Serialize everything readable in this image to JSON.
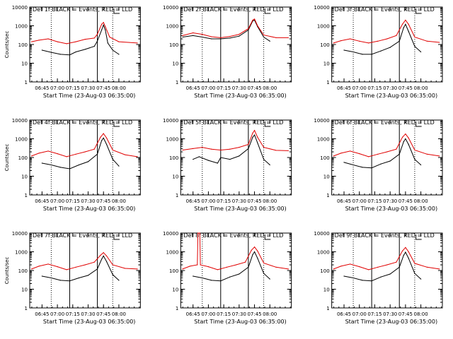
{
  "figure": {
    "background": "#ffffff",
    "axis_color": "#000000",
    "events_color": "#000000",
    "lld_color": "#e00000"
  },
  "chart_data": [
    {
      "type": "line",
      "detector": "Det 1f",
      "title": "Det 1f BLACK = Events, RED = LLD",
      "xlabel": "Start Time (23-Aug-03 06:35:00)",
      "ylabel": "Counts/sec",
      "xticks": [
        "06:45",
        "07:00",
        "07:15",
        "07:30",
        "07:45",
        "08:00"
      ],
      "yticks": [
        "1",
        "10",
        "100",
        "1000",
        "10000"
      ],
      "ylim": [
        1,
        10000
      ],
      "y_scale": "log",
      "series": [
        {
          "name": "Events",
          "color": "black",
          "x": [
            6.75,
            6.9,
            7.05,
            7.2,
            7.3,
            7.45,
            7.6,
            7.65,
            7.72,
            7.75,
            7.78,
            7.82,
            7.9,
            8.0
          ],
          "y": [
            50,
            38,
            30,
            28,
            40,
            55,
            80,
            150,
            600,
            1100,
            600,
            120,
            50,
            30
          ]
        },
        {
          "name": "LLD",
          "color": "red",
          "x": [
            6.58,
            6.7,
            6.85,
            7.0,
            7.15,
            7.3,
            7.45,
            7.6,
            7.65,
            7.72,
            7.75,
            7.78,
            7.85,
            8.0,
            8.3
          ],
          "y": [
            140,
            170,
            200,
            140,
            110,
            140,
            190,
            220,
            350,
            1200,
            1500,
            900,
            250,
            140,
            120
          ]
        }
      ],
      "vlines_solid": [
        7.2,
        7.65
      ],
      "vlines_dotted": [
        6.9,
        7.9
      ]
    },
    {
      "type": "line",
      "detector": "Det 2f",
      "title": "Det 2f BLACK = Events, RED = LLD",
      "xlabel": "Start Time (23-Aug-03 06:35:00)",
      "ylabel": "",
      "xticks": [
        "06:45",
        "07:00",
        "07:15",
        "07:30",
        "07:45",
        "08:00"
      ],
      "yticks": [
        "1",
        "10",
        "100",
        "1000",
        "10000"
      ],
      "ylim": [
        1,
        10000
      ],
      "y_scale": "log",
      "series": [
        {
          "name": "Events",
          "color": "black",
          "x": [
            6.58,
            6.75,
            6.9,
            7.05,
            7.2,
            7.35,
            7.5,
            7.65,
            7.72,
            7.75,
            7.8,
            7.9,
            8.0
          ],
          "y": [
            250,
            300,
            250,
            200,
            200,
            220,
            280,
            600,
            1800,
            2000,
            900,
            250,
            150
          ]
        },
        {
          "name": "LLD",
          "color": "red",
          "x": [
            6.58,
            6.75,
            6.9,
            7.05,
            7.2,
            7.35,
            7.5,
            7.65,
            7.72,
            7.75,
            7.8,
            7.9,
            8.1,
            8.3
          ],
          "y": [
            300,
            420,
            350,
            260,
            230,
            270,
            350,
            700,
            2000,
            2300,
            1000,
            320,
            230,
            230
          ]
        }
      ],
      "vlines_solid": [
        7.2,
        7.65
      ],
      "vlines_dotted": [
        6.9,
        7.9
      ]
    },
    {
      "type": "line",
      "detector": "Det 3f",
      "title": "Det 3f BLACK = Events, RED = LLD",
      "xlabel": "Start Time (23-Aug-03 06:35:00)",
      "ylabel": "",
      "xticks": [
        "06:45",
        "07:00",
        "07:15",
        "07:30",
        "07:45",
        "08:00"
      ],
      "yticks": [
        "1",
        "10",
        "100",
        "1000",
        "10000"
      ],
      "ylim": [
        1,
        10000
      ],
      "y_scale": "log",
      "series": [
        {
          "name": "Events",
          "color": "black",
          "x": [
            6.75,
            6.9,
            7.05,
            7.2,
            7.35,
            7.5,
            7.65,
            7.72,
            7.75,
            7.8,
            7.9,
            8.0
          ],
          "y": [
            50,
            40,
            30,
            30,
            45,
            70,
            150,
            800,
            1200,
            500,
            80,
            40
          ]
        },
        {
          "name": "LLD",
          "color": "red",
          "x": [
            6.58,
            6.7,
            6.85,
            7.0,
            7.15,
            7.3,
            7.45,
            7.6,
            7.7,
            7.75,
            7.8,
            7.9,
            8.1,
            8.3
          ],
          "y": [
            120,
            160,
            200,
            150,
            120,
            150,
            200,
            300,
            1200,
            2000,
            1200,
            250,
            150,
            130
          ]
        }
      ],
      "vlines_solid": [
        7.2,
        7.65
      ],
      "vlines_dotted": [
        6.9,
        7.9
      ]
    },
    {
      "type": "line",
      "detector": "Det 4f",
      "title": "Det 4f BLACK = Events, RED = LLD",
      "xlabel": "Start Time (23-Aug-03 06:35:00)",
      "ylabel": "Counts/sec",
      "xticks": [
        "06:45",
        "07:00",
        "07:15",
        "07:30",
        "07:45",
        "08:00"
      ],
      "yticks": [
        "1",
        "10",
        "100",
        "1000",
        "10000"
      ],
      "ylim": [
        1,
        10000
      ],
      "y_scale": "log",
      "series": [
        {
          "name": "Events",
          "color": "black",
          "x": [
            6.75,
            6.9,
            7.05,
            7.2,
            7.35,
            7.5,
            7.65,
            7.72,
            7.75,
            7.8,
            7.9,
            8.0
          ],
          "y": [
            50,
            40,
            30,
            25,
            40,
            60,
            150,
            800,
            1100,
            500,
            80,
            35
          ]
        },
        {
          "name": "LLD",
          "color": "red",
          "x": [
            6.58,
            6.7,
            6.85,
            7.0,
            7.15,
            7.3,
            7.45,
            7.6,
            7.7,
            7.75,
            7.8,
            7.9,
            8.1,
            8.3
          ],
          "y": [
            120,
            170,
            220,
            160,
            110,
            150,
            200,
            280,
            1200,
            1900,
            1100,
            250,
            140,
            110
          ]
        }
      ],
      "vlines_solid": [
        7.2,
        7.65
      ],
      "vlines_dotted": [
        6.9,
        7.9
      ]
    },
    {
      "type": "line",
      "detector": "Det 5f",
      "title": "Det 5f BLACK = Events, RED = LLD",
      "xlabel": "Start Time (23-Aug-03 06:35:00)",
      "ylabel": "",
      "xticks": [
        "06:45",
        "07:00",
        "07:15",
        "07:30",
        "07:45",
        "08:00"
      ],
      "yticks": [
        "1",
        "10",
        "100",
        "1000",
        "10000"
      ],
      "ylim": [
        1,
        10000
      ],
      "y_scale": "log",
      "series": [
        {
          "name": "Events",
          "color": "black",
          "x": [
            6.75,
            6.85,
            7.0,
            7.15,
            7.2,
            7.35,
            7.5,
            7.65,
            7.72,
            7.75,
            7.8,
            7.9,
            8.0
          ],
          "y": [
            80,
            110,
            70,
            50,
            100,
            80,
            120,
            300,
            1200,
            1600,
            600,
            80,
            40
          ]
        },
        {
          "name": "LLD",
          "color": "red",
          "x": [
            6.58,
            6.75,
            6.9,
            7.05,
            7.2,
            7.35,
            7.5,
            7.65,
            7.72,
            7.75,
            7.8,
            7.9,
            8.1,
            8.3
          ],
          "y": [
            250,
            300,
            350,
            280,
            250,
            280,
            350,
            500,
            2000,
            2800,
            1200,
            350,
            240,
            230
          ]
        }
      ],
      "vlines_solid": [
        7.2,
        7.65
      ],
      "vlines_dotted": [
        6.9,
        7.9
      ]
    },
    {
      "type": "line",
      "detector": "Det 6f",
      "title": "Det 6f BLACK = Events, RED = LLD",
      "xlabel": "Start Time (23-Aug-03 06:35:00)",
      "ylabel": "",
      "xticks": [
        "06:45",
        "07:00",
        "07:15",
        "07:30",
        "07:45",
        "08:00"
      ],
      "yticks": [
        "1",
        "10",
        "100",
        "1000",
        "10000"
      ],
      "ylim": [
        1,
        10000
      ],
      "y_scale": "log",
      "series": [
        {
          "name": "Events",
          "color": "black",
          "x": [
            6.75,
            6.9,
            7.05,
            7.2,
            7.35,
            7.5,
            7.65,
            7.72,
            7.75,
            7.8,
            7.9,
            8.0
          ],
          "y": [
            55,
            40,
            30,
            28,
            45,
            65,
            150,
            700,
            1000,
            500,
            80,
            40
          ]
        },
        {
          "name": "LLD",
          "color": "red",
          "x": [
            6.58,
            6.7,
            6.85,
            7.0,
            7.15,
            7.3,
            7.45,
            7.6,
            7.7,
            7.75,
            7.8,
            7.9,
            8.1,
            8.3
          ],
          "y": [
            120,
            170,
            220,
            160,
            110,
            150,
            200,
            280,
            1200,
            1800,
            1100,
            250,
            150,
            120
          ]
        }
      ],
      "vlines_solid": [
        7.2,
        7.65
      ],
      "vlines_dotted": [
        6.9,
        7.9
      ]
    },
    {
      "type": "line",
      "detector": "Det 7f",
      "title": "Det 7f BLACK = Events, RED = LLD",
      "xlabel": "Start Time (23-Aug-03 06:35:00)",
      "ylabel": "Counts/sec",
      "xticks": [
        "06:45",
        "07:00",
        "07:15",
        "07:30",
        "07:45",
        "08:00"
      ],
      "yticks": [
        "1",
        "10",
        "100",
        "1000",
        "10000"
      ],
      "ylim": [
        1,
        10000
      ],
      "y_scale": "log",
      "series": [
        {
          "name": "Events",
          "color": "black",
          "x": [
            6.75,
            6.9,
            7.05,
            7.2,
            7.35,
            7.5,
            7.65,
            7.72,
            7.75,
            7.8,
            7.9,
            8.0
          ],
          "y": [
            50,
            40,
            30,
            28,
            40,
            55,
            120,
            400,
            600,
            300,
            60,
            30
          ]
        },
        {
          "name": "LLD",
          "color": "red",
          "x": [
            6.58,
            6.7,
            6.85,
            7.0,
            7.15,
            7.3,
            7.45,
            7.6,
            7.7,
            7.75,
            7.8,
            7.9,
            8.1,
            8.3
          ],
          "y": [
            120,
            170,
            220,
            160,
            110,
            150,
            200,
            280,
            650,
            900,
            600,
            200,
            130,
            120
          ]
        }
      ],
      "vlines_solid": [
        7.2,
        7.65
      ],
      "vlines_dotted": [
        6.9,
        7.9
      ]
    },
    {
      "type": "line",
      "detector": "Det 8f",
      "title": "Det 8f BLACK = Events, RED = LLD",
      "xlabel": "Start Time (23-Aug-03 06:35:00)",
      "ylabel": "",
      "xticks": [
        "06:45",
        "07:00",
        "07:15",
        "07:30",
        "07:45",
        "08:00"
      ],
      "yticks": [
        "1",
        "10",
        "100",
        "1000",
        "10000"
      ],
      "ylim": [
        1,
        10000
      ],
      "y_scale": "log",
      "series": [
        {
          "name": "Events",
          "color": "black",
          "x": [
            6.75,
            6.9,
            7.05,
            7.2,
            7.35,
            7.5,
            7.65,
            7.72,
            7.75,
            7.8,
            7.9,
            8.0
          ],
          "y": [
            50,
            40,
            30,
            28,
            45,
            65,
            150,
            700,
            1000,
            450,
            70,
            35
          ]
        },
        {
          "name": "LLD",
          "color": "red",
          "x": [
            6.58,
            6.7,
            6.82,
            6.83,
            6.86,
            6.87,
            7.0,
            7.15,
            7.3,
            7.45,
            7.6,
            7.7,
            7.75,
            7.8,
            7.9,
            8.1,
            8.3
          ],
          "y": [
            120,
            170,
            200,
            10000,
            10000,
            200,
            160,
            110,
            150,
            200,
            280,
            1200,
            1800,
            1100,
            250,
            150,
            120
          ]
        }
      ],
      "vlines_solid": [
        7.2,
        7.65
      ],
      "vlines_dotted": [
        6.9,
        7.9
      ]
    },
    {
      "type": "line",
      "detector": "Det 9f",
      "title": "Det 9f BLACK = Events, RED = LLD",
      "xlabel": "Start Time (23-Aug-03 06:35:00)",
      "ylabel": "",
      "xticks": [
        "06:45",
        "07:00",
        "07:15",
        "07:30",
        "07:45",
        "08:00"
      ],
      "yticks": [
        "1",
        "10",
        "100",
        "1000",
        "10000"
      ],
      "ylim": [
        1,
        10000
      ],
      "y_scale": "log",
      "series": [
        {
          "name": "Events",
          "color": "black",
          "x": [
            6.75,
            6.9,
            7.05,
            7.2,
            7.35,
            7.5,
            7.65,
            7.72,
            7.75,
            7.8,
            7.9,
            8.0
          ],
          "y": [
            50,
            40,
            30,
            28,
            45,
            65,
            150,
            650,
            950,
            450,
            70,
            35
          ]
        },
        {
          "name": "LLD",
          "color": "red",
          "x": [
            6.58,
            6.7,
            6.85,
            7.0,
            7.15,
            7.3,
            7.45,
            7.6,
            7.7,
            7.75,
            7.8,
            7.9,
            8.1,
            8.3
          ],
          "y": [
            120,
            170,
            220,
            160,
            110,
            150,
            200,
            280,
            1100,
            1700,
            1000,
            240,
            150,
            120
          ]
        }
      ],
      "vlines_solid": [
        7.2,
        7.65
      ],
      "vlines_dotted": [
        6.9,
        7.9
      ]
    }
  ]
}
